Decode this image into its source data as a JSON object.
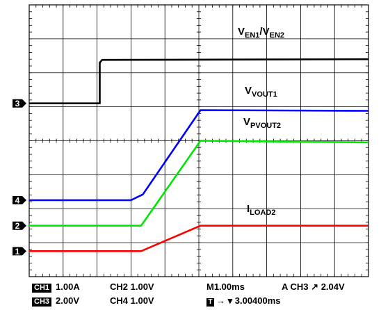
{
  "chart_data": {
    "type": "line",
    "grid": true,
    "x_range_div": [
      0,
      10
    ],
    "y_range_div": [
      0,
      8
    ],
    "series": [
      {
        "name": "V<sub>EN1</sub>/V<sub>EN2</sub>",
        "label_main": "V",
        "label_sub1": "EN1",
        "label_sep": "/V",
        "label_sub2": "EN2",
        "color": "#000000",
        "marker": "3",
        "points": [
          [
            0,
            5.1
          ],
          [
            2.08,
            5.1
          ],
          [
            2.08,
            6.3
          ],
          [
            2.15,
            6.38
          ],
          [
            10,
            6.4
          ]
        ]
      },
      {
        "name": "V<sub>VOUT1</sub>",
        "label_main": "V",
        "label_sub1": "VOUT1",
        "color": "#0000ff",
        "marker": "4",
        "points": [
          [
            0,
            2.25
          ],
          [
            3.0,
            2.25
          ],
          [
            3.35,
            2.42
          ],
          [
            5.05,
            4.9
          ],
          [
            10,
            4.88
          ]
        ]
      },
      {
        "name": "V<sub>PVOUT2</sub>",
        "label_main": "V",
        "label_sub1": "PVOUT2",
        "color": "#00e600",
        "marker": "2",
        "points": [
          [
            0,
            1.5
          ],
          [
            3.3,
            1.5
          ],
          [
            5.05,
            4.0
          ],
          [
            10,
            3.95
          ]
        ]
      },
      {
        "name": "I<sub>LOAD2</sub>",
        "label_main": "I",
        "label_sub1": "LOAD2",
        "color": "#ff0000",
        "marker": "1",
        "points": [
          [
            0,
            0.75
          ],
          [
            3.3,
            0.75
          ],
          [
            5.05,
            1.5
          ],
          [
            10,
            1.5
          ]
        ]
      }
    ]
  },
  "readouts": {
    "ch1_tag": "CH1",
    "ch1_scale": "1.00A",
    "ch2": "CH2 1.00V",
    "timebase": "M1.00ms",
    "trigger": "A  CH3",
    "trigger_symbol": "↗",
    "trigger_level": "2.04V",
    "ch3_tag": "CH3",
    "ch3_scale": "2.00V",
    "ch4": "CH4 1.00V",
    "trigger_pos_tag": "T",
    "trigger_pos": "→ ▾ 3.00400ms"
  }
}
